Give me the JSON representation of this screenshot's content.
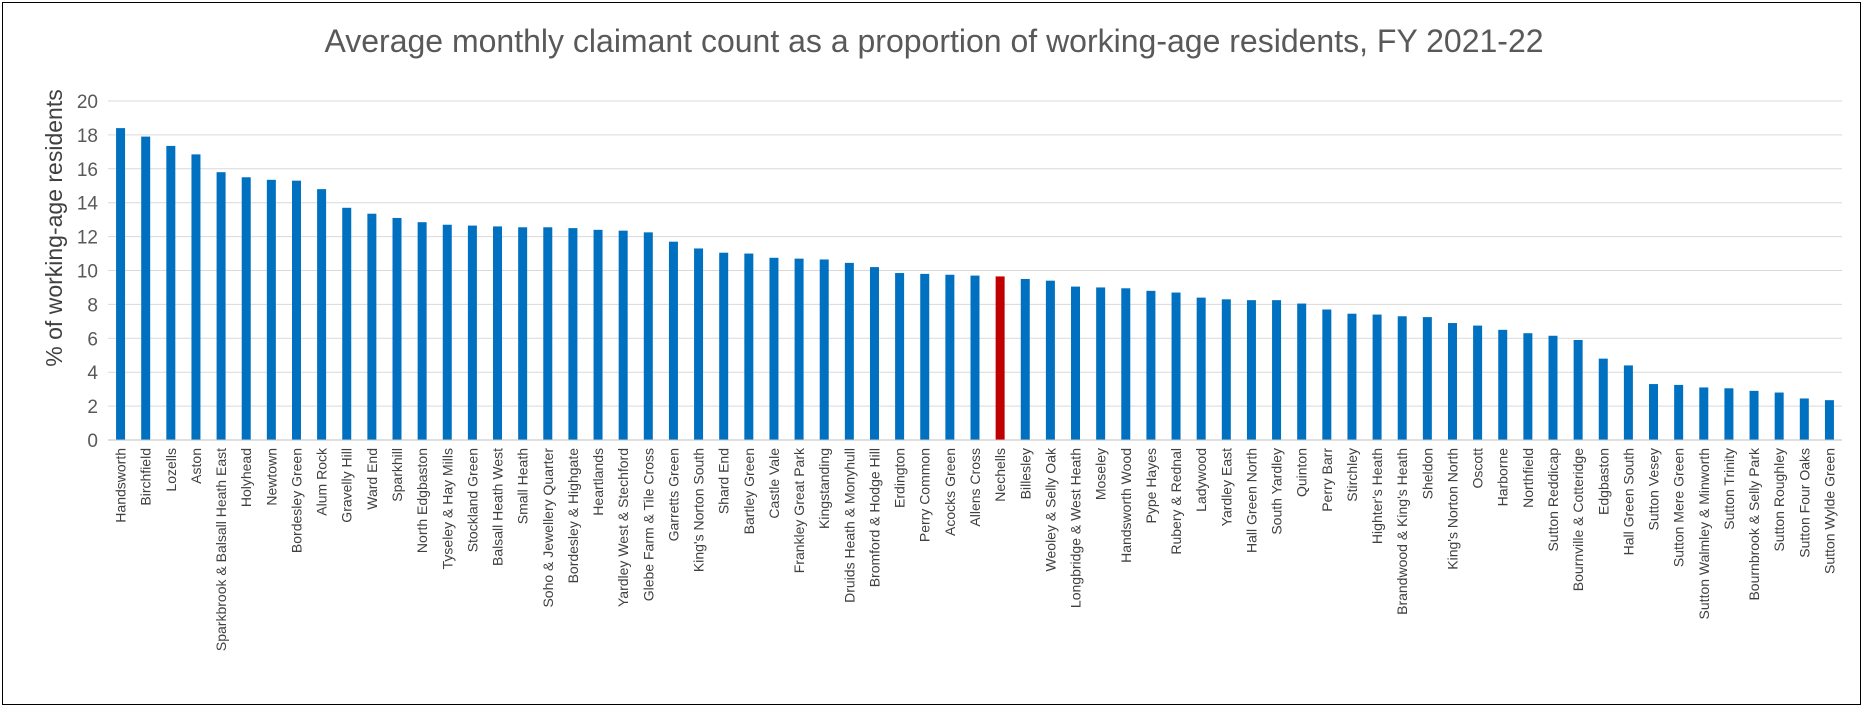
{
  "chart_data": {
    "type": "bar",
    "title": "Average monthly claimant count as a proportion of working-age residents, FY 2021-22",
    "xlabel": "",
    "ylabel": "% of working-age residents",
    "ylim": [
      0,
      20
    ],
    "yticks": [
      "0",
      "2",
      "4",
      "6",
      "8",
      "10",
      "12",
      "14",
      "16",
      "18",
      "20"
    ],
    "grid": true,
    "legend": "none",
    "colors": {
      "default": "#0070C0",
      "highlight": "#C00000",
      "grid": "#D9D9D9",
      "axis": "#BFBFBF"
    },
    "highlight_category": "Nechells",
    "categories": [
      "Handsworth",
      "Birchfield",
      "Lozells",
      "Aston",
      "Sparkbrook & Balsall Heath East",
      "Holyhead",
      "Newtown",
      "Bordesley Green",
      "Alum Rock",
      "Gravelly Hill",
      "Ward End",
      "Sparkhill",
      "North Edgbaston",
      "Tyseley & Hay Mills",
      "Stockland Green",
      "Balsall Heath West",
      "Small Heath",
      "Soho & Jewellery Quarter",
      "Bordesley & Highgate",
      "Heartlands",
      "Yardley West & Stechford",
      "Glebe Farm & Tile Cross",
      "Garretts Green",
      "King's Norton South",
      "Shard End",
      "Bartley Green",
      "Castle Vale",
      "Frankley Great Park",
      "Kingstanding",
      "Druids Heath & Monyhull",
      "Bromford & Hodge Hill",
      "Erdington",
      "Perry Common",
      "Acocks Green",
      "Allens Cross",
      "Nechells",
      "Billesley",
      "Weoley & Selly Oak",
      "Longbridge & West Heath",
      "Moseley",
      "Handsworth Wood",
      "Pype Hayes",
      "Rubery & Rednal",
      "Ladywood",
      "Yardley East",
      "Hall Green North",
      "South Yardley",
      "Quinton",
      "Perry Barr",
      "Stirchley",
      "Highter's Heath",
      "Brandwood & King's Heath",
      "Sheldon",
      "King's Norton North",
      "Oscott",
      "Harborne",
      "Northfield",
      "Sutton Reddicap",
      "Bournville & Cotteridge",
      "Edgbaston",
      "Hall Green South",
      "Sutton Vesey",
      "Sutton Mere Green",
      "Sutton Walmley & Minworth",
      "Sutton Trinity",
      "Bournbrook & Selly Park",
      "Sutton Roughley",
      "Sutton Four Oaks",
      "Sutton Wylde Green"
    ],
    "values": [
      18.4,
      17.9,
      17.35,
      16.85,
      15.8,
      15.5,
      15.35,
      15.3,
      14.8,
      13.7,
      13.35,
      13.1,
      12.85,
      12.7,
      12.65,
      12.6,
      12.55,
      12.55,
      12.5,
      12.4,
      12.35,
      12.25,
      11.7,
      11.3,
      11.05,
      11.0,
      10.75,
      10.7,
      10.65,
      10.45,
      10.2,
      9.85,
      9.8,
      9.75,
      9.7,
      9.65,
      9.5,
      9.4,
      9.05,
      9.0,
      8.95,
      8.8,
      8.7,
      8.4,
      8.3,
      8.25,
      8.25,
      8.05,
      7.7,
      7.45,
      7.4,
      7.3,
      7.25,
      6.9,
      6.75,
      6.5,
      6.3,
      6.15,
      5.9,
      4.8,
      4.4,
      3.3,
      3.25,
      3.1,
      3.05,
      2.9,
      2.8,
      2.45,
      2.35
    ]
  }
}
